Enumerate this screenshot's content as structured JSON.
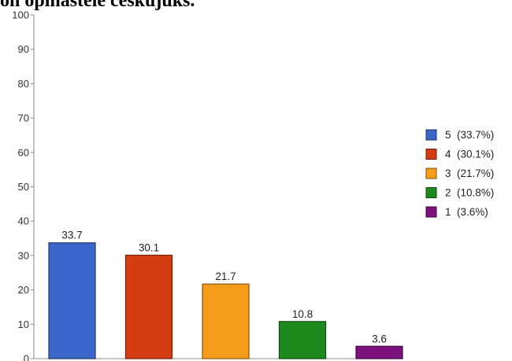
{
  "chart_data": {
    "type": "bar",
    "title": "on opinastele ceskujuks.",
    "categories": [
      "5",
      "4",
      "3",
      "2",
      "1"
    ],
    "values": [
      33.7,
      30.1,
      21.7,
      10.8,
      3.6
    ],
    "value_labels": [
      "33.7",
      "30.1",
      "21.7",
      "10.8",
      "3.6"
    ],
    "colors": [
      "#3a66c9",
      "#d43d12",
      "#f59c1a",
      "#1d8a1d",
      "#7d117d"
    ],
    "ylim": [
      0,
      100
    ],
    "yticks": [
      0,
      10,
      20,
      30,
      40,
      50,
      60,
      70,
      80,
      90,
      100
    ],
    "xlabel": "",
    "ylabel": "",
    "grid": false,
    "legend": {
      "position": "right",
      "entries": [
        {
          "key": "5",
          "pct": "(33.7%)"
        },
        {
          "key": "4",
          "pct": "(30.1%)"
        },
        {
          "key": "3",
          "pct": "(21.7%)"
        },
        {
          "key": "2",
          "pct": "(10.8%)"
        },
        {
          "key": "1",
          "pct": "(3.6%)"
        }
      ]
    }
  }
}
